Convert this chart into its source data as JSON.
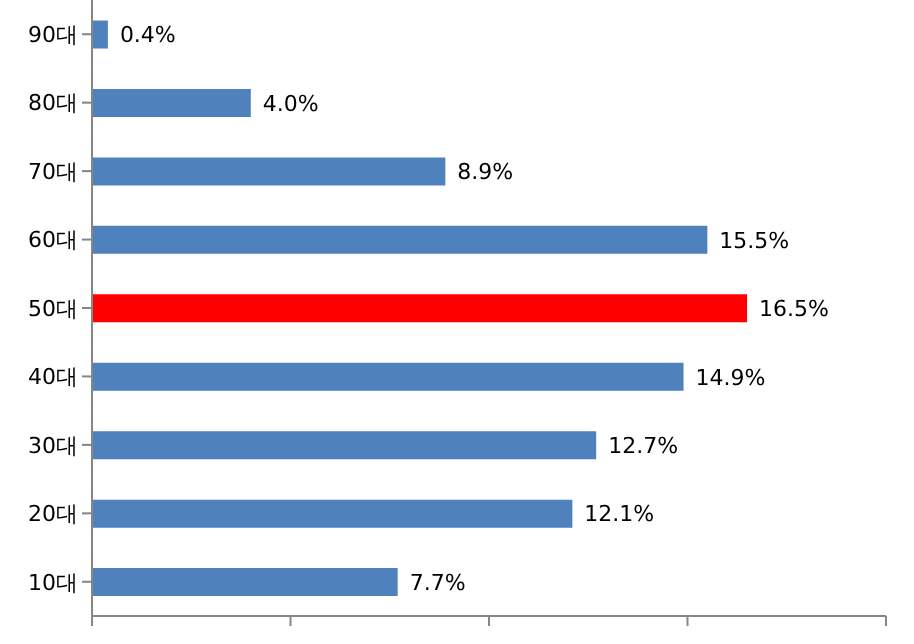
{
  "chart_data": {
    "type": "bar",
    "orientation": "horizontal",
    "categories": [
      "90대",
      "80대",
      "70대",
      "60대",
      "50대",
      "40대",
      "30대",
      "20대",
      "10대"
    ],
    "values": [
      0.4,
      4.0,
      8.9,
      15.5,
      16.5,
      14.9,
      12.7,
      12.1,
      7.7
    ],
    "colors": [
      "#4f81bd",
      "#4f81bd",
      "#4f81bd",
      "#4f81bd",
      "#ff0000",
      "#4f81bd",
      "#4f81bd",
      "#4f81bd",
      "#4f81bd"
    ],
    "value_labels": [
      "0.4%",
      "4.0%",
      "8.9%",
      "15.5%",
      "16.5%",
      "14.9%",
      "12.7%",
      "12.1%",
      "7.7%"
    ],
    "xlim": [
      0,
      20
    ],
    "xticks": [
      {
        "value": 0,
        "label": null
      },
      {
        "value": 5,
        "label": null
      },
      {
        "value": 10,
        "label": null
      },
      {
        "value": 15,
        "label": null
      },
      {
        "value": 20,
        "label": null
      }
    ],
    "tick_labels": "y",
    "grid": false
  }
}
